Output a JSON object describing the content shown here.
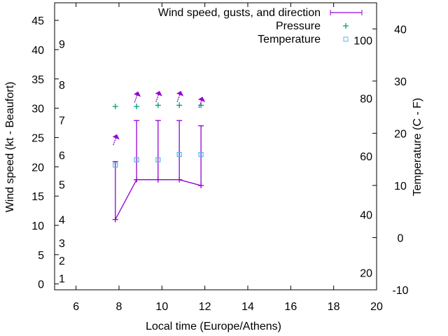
{
  "chart_data": {
    "type": "line",
    "xlabel": "Local time (Europe/Athens)",
    "ylabel": "Wind speed (kt - Beaufort)",
    "y2label": "Temperature (C - F)",
    "xlim": [
      5,
      20
    ],
    "ylim": [
      -1,
      48
    ],
    "y2lim": [
      -10,
      45
    ],
    "xticks": [
      6,
      8,
      10,
      12,
      14,
      16,
      18,
      20
    ],
    "yticks": [
      0,
      5,
      10,
      15,
      20,
      25,
      30,
      35,
      40,
      45
    ],
    "y2ticks": [
      -10,
      0,
      10,
      20,
      30,
      40
    ],
    "beaufort_labels": [
      {
        "label": "1",
        "kt": 1
      },
      {
        "label": "2",
        "kt": 4
      },
      {
        "label": "3",
        "kt": 7
      },
      {
        "label": "4",
        "kt": 11
      },
      {
        "label": "5",
        "kt": 17
      },
      {
        "label": "6",
        "kt": 22
      },
      {
        "label": "7",
        "kt": 28
      },
      {
        "label": "8",
        "kt": 34
      },
      {
        "label": "9",
        "kt": 41
      }
    ],
    "fahrenheit_labels": [
      {
        "label": "20",
        "c": -6.7
      },
      {
        "label": "40",
        "c": 4.4
      },
      {
        "label": "60",
        "c": 15.6
      },
      {
        "label": "80",
        "c": 26.7
      },
      {
        "label": "100",
        "c": 37.8
      }
    ],
    "legend": [
      "Wind speed, gusts, and direction",
      "Pressure",
      "Temperature"
    ],
    "legend_position": "top-right",
    "colors": {
      "wind": "#9400d3",
      "pressure": "#009e73",
      "temperature": "#56b4e9"
    },
    "x": [
      7.83,
      8.82,
      9.82,
      10.81,
      11.82
    ],
    "series": [
      {
        "name": "Wind speed",
        "values": [
          11.0,
          17.8,
          17.8,
          17.8,
          16.8
        ]
      },
      {
        "name": "Gusts",
        "values": [
          20.9,
          27.9,
          27.9,
          27.9,
          27.0
        ]
      },
      {
        "name": "Pressure",
        "values": [
          30.3,
          30.3,
          30.5,
          30.5,
          30.5
        ]
      },
      {
        "name": "Temperature",
        "values": [
          20.3,
          21.2,
          21.2,
          22.1,
          22.1
        ]
      }
    ],
    "wind_arrow_y": [
      25,
      32.3,
      32.4,
      32.4,
      31.4
    ]
  }
}
